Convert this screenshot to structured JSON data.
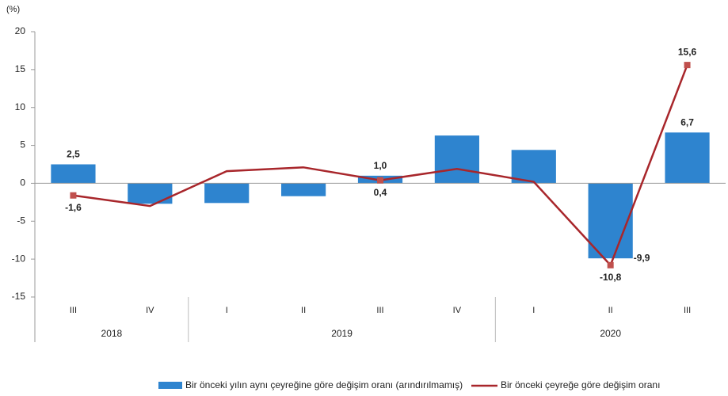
{
  "chart_data": {
    "type": "bar_line",
    "y_unit": "(%)",
    "categories": [
      "III",
      "IV",
      "I",
      "II",
      "III",
      "IV",
      "I",
      "II",
      "III"
    ],
    "groups": [
      {
        "label": "2018",
        "count": 2
      },
      {
        "label": "2019",
        "count": 4
      },
      {
        "label": "2020",
        "count": 3
      }
    ],
    "series": [
      {
        "name": "Bir önceki yılın aynı çeyreğine göre değişim oranı (arındırılmamış)",
        "kind": "bar",
        "color": "#2e84cf",
        "values": [
          2.5,
          -2.7,
          -2.6,
          -1.7,
          1.0,
          6.3,
          4.4,
          -9.9,
          6.7
        ],
        "value_labels": [
          "2,5",
          null,
          null,
          null,
          "1,0",
          null,
          null,
          "-9,9",
          "6,7"
        ]
      },
      {
        "name": "Bir önceki çeyreğe göre değişim oranı",
        "kind": "line",
        "color": "#a8262b",
        "marker_color": "#c0504d",
        "values": [
          -1.6,
          -3.0,
          1.6,
          2.1,
          0.4,
          1.9,
          0.2,
          -10.8,
          15.6
        ],
        "value_labels": [
          "-1,6",
          null,
          null,
          null,
          "0,4",
          null,
          null,
          "-10,8",
          "15,6"
        ]
      }
    ],
    "ylim": [
      -15,
      20
    ],
    "yticks": [
      -15,
      -10,
      -5,
      0,
      5,
      10,
      15,
      20
    ]
  }
}
